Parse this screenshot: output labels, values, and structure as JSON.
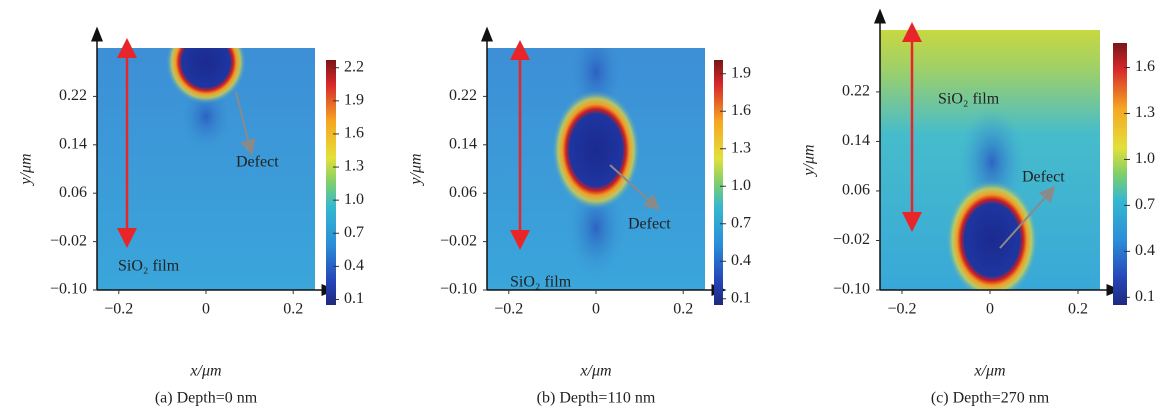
{
  "chart_data": [
    {
      "type": "heatmap",
      "title": "(a) Depth=0 nm",
      "xlabel": "x/μm",
      "ylabel": "y/μm",
      "xlim": [
        -0.25,
        0.25
      ],
      "ylim": [
        -0.1,
        0.3
      ],
      "xticks": [
        {
          "value": -0.2,
          "label": "−0.2"
        },
        0,
        0.2
      ],
      "yticks": [
        {
          "value": -0.1,
          "label": "−0.10"
        },
        {
          "value": -0.02,
          "label": "−0.02"
        },
        0.06,
        0.14,
        0.22
      ],
      "colorbar": {
        "clim": [
          0.05,
          2.27
        ],
        "ticks": [
          0.1,
          0.4,
          0.7,
          {
            "value": 1.0,
            "label": "1.0"
          },
          1.3,
          1.6,
          1.9,
          2.2
        ]
      },
      "annotations": [
        "Defect",
        "SiO₂ film"
      ]
    },
    {
      "type": "heatmap",
      "title": "(b) Depth=110 nm",
      "xlabel": "x/μm",
      "ylabel": "y/μm",
      "xlim": [
        -0.25,
        0.25
      ],
      "ylim": [
        -0.1,
        0.3
      ],
      "xticks": [
        {
          "value": -0.2,
          "label": "−0.2"
        },
        0,
        0.2
      ],
      "yticks": [
        {
          "value": -0.1,
          "label": "−0.10"
        },
        {
          "value": -0.02,
          "label": "−0.02"
        },
        0.06,
        0.14,
        0.22
      ],
      "colorbar": {
        "clim": [
          0.05,
          2.01
        ],
        "ticks": [
          0.1,
          0.4,
          0.7,
          {
            "value": 1.0,
            "label": "1.0"
          },
          1.3,
          1.6,
          1.9
        ]
      },
      "annotations": [
        "Defect",
        "SiO₂ film"
      ]
    },
    {
      "type": "heatmap",
      "title": "(c) Depth=270 nm",
      "xlabel": "x/μm",
      "ylabel": "y/μm",
      "xlim": [
        -0.25,
        0.25
      ],
      "ylim": [
        -0.1,
        0.32
      ],
      "xticks": [
        {
          "value": -0.2,
          "label": "−0.2"
        },
        0,
        0.2
      ],
      "yticks": [
        {
          "value": -0.1,
          "label": "−0.10"
        },
        {
          "value": -0.02,
          "label": "−0.02"
        },
        0.06,
        0.14,
        0.22
      ],
      "colorbar": {
        "clim": [
          0.05,
          1.76
        ],
        "ticks": [
          0.1,
          0.4,
          0.7,
          {
            "value": 1.0,
            "label": "1.0"
          },
          1.3,
          1.6
        ]
      },
      "annotations": [
        "Defect",
        "SiO₂ film"
      ]
    }
  ]
}
